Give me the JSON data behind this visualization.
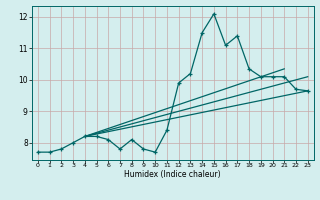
{
  "xlabel": "Humidex (Indice chaleur)",
  "bg_color": "#d4eeee",
  "line_color": "#006666",
  "grid_color": "#c8a8a8",
  "xlim": [
    -0.5,
    23.5
  ],
  "ylim": [
    7.45,
    12.35
  ],
  "xticks": [
    0,
    1,
    2,
    3,
    4,
    5,
    6,
    7,
    8,
    9,
    10,
    11,
    12,
    13,
    14,
    15,
    16,
    17,
    18,
    19,
    20,
    21,
    22,
    23
  ],
  "yticks": [
    8,
    9,
    10,
    11,
    12
  ],
  "series1_x": [
    0,
    1,
    2,
    3,
    4,
    5,
    6,
    7,
    8,
    9,
    10,
    11,
    12,
    13,
    14,
    15,
    16,
    17,
    18,
    19,
    20,
    21,
    22,
    23
  ],
  "series1_y": [
    7.7,
    7.7,
    7.8,
    8.0,
    8.2,
    8.2,
    8.1,
    7.8,
    8.1,
    7.8,
    7.7,
    8.4,
    9.9,
    10.2,
    11.5,
    12.1,
    11.1,
    11.4,
    10.35,
    10.1,
    10.1,
    10.1,
    9.7,
    9.65
  ],
  "trend1_x": [
    4,
    23
  ],
  "trend1_y": [
    8.2,
    10.1
  ],
  "trend2_x": [
    4,
    23
  ],
  "trend2_y": [
    8.2,
    9.65
  ],
  "trend3_x": [
    4,
    21
  ],
  "trend3_y": [
    8.2,
    10.35
  ],
  "marker": "+",
  "markersize": 3.5,
  "linewidth": 0.9
}
